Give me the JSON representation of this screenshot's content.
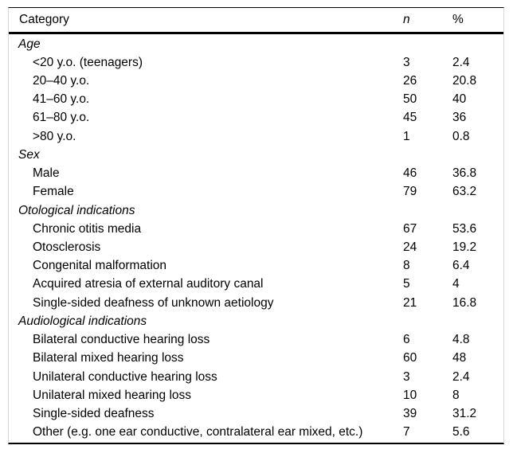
{
  "colors": {
    "text": "#000000",
    "strong_rule": "#000000",
    "side_rule": "#d9d9d9",
    "background": "#ffffff"
  },
  "table": {
    "columns": {
      "category": "Category",
      "n": "n",
      "pct": "%"
    },
    "sections": [
      {
        "label": "Age",
        "rows": [
          {
            "category": "<20 y.o. (teenagers)",
            "n": "3",
            "pct": "2.4"
          },
          {
            "category": "20–40 y.o.",
            "n": "26",
            "pct": "20.8"
          },
          {
            "category": "41–60 y.o.",
            "n": "50",
            "pct": "40"
          },
          {
            "category": "61–80 y.o.",
            "n": "45",
            "pct": "36"
          },
          {
            "category": ">80 y.o.",
            "n": "1",
            "pct": "0.8"
          }
        ]
      },
      {
        "label": "Sex",
        "rows": [
          {
            "category": "Male",
            "n": "46",
            "pct": "36.8"
          },
          {
            "category": "Female",
            "n": "79",
            "pct": "63.2"
          }
        ]
      },
      {
        "label": "Otological indications",
        "rows": [
          {
            "category": "Chronic otitis media",
            "n": "67",
            "pct": "53.6"
          },
          {
            "category": "Otosclerosis",
            "n": "24",
            "pct": "19.2"
          },
          {
            "category": "Congenital malformation",
            "n": "8",
            "pct": "6.4"
          },
          {
            "category": "Acquired atresia of external auditory canal",
            "n": "5",
            "pct": "4"
          },
          {
            "category": "Single-sided deafness of unknown aetiology",
            "n": "21",
            "pct": "16.8"
          }
        ]
      },
      {
        "label": "Audiological indications",
        "rows": [
          {
            "category": "Bilateral conductive hearing loss",
            "n": "6",
            "pct": "4.8"
          },
          {
            "category": "Bilateral mixed hearing loss",
            "n": "60",
            "pct": "48"
          },
          {
            "category": "Unilateral conductive hearing loss",
            "n": "3",
            "pct": "2.4"
          },
          {
            "category": "Unilateral mixed hearing loss",
            "n": "10",
            "pct": "8"
          },
          {
            "category": "Single-sided deafness",
            "n": "39",
            "pct": "31.2"
          },
          {
            "category": "Other (e.g. one ear conductive, contralateral ear mixed, etc.)",
            "n": "7",
            "pct": "5.6"
          }
        ]
      }
    ]
  }
}
